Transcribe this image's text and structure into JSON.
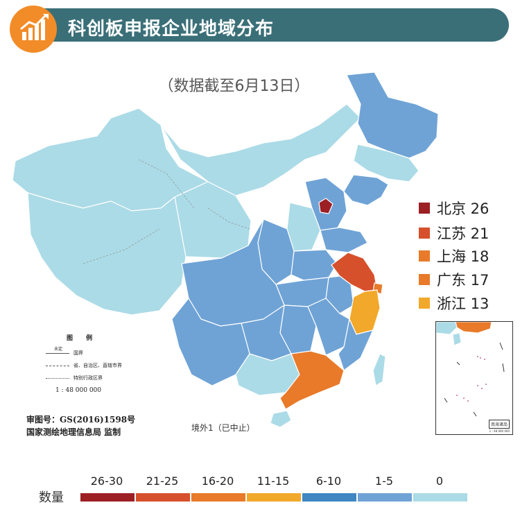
{
  "header": {
    "title": "科创板申报企业地域分布",
    "subtitle": "（数据截至6月13日）"
  },
  "colors": {
    "header_bg": "#3a6f78",
    "logo_bg": "#f28c28",
    "province_0": "#abdbe6",
    "province_1_5": "#6fa3d6",
    "province_6_10": "#3f86c2",
    "province_11_15": "#f2a82a",
    "province_16_20": "#e87a2a",
    "province_21_25": "#d6502b",
    "province_26_30": "#9c1f24",
    "border": "#ffffff",
    "sea": "#ffffff"
  },
  "legend_top": [
    {
      "label": "北京 26",
      "color": "#9c1f24"
    },
    {
      "label": "江苏 21",
      "color": "#d6502b"
    },
    {
      "label": "上海 18",
      "color": "#e87a2a"
    },
    {
      "label": "广东 17",
      "color": "#e87a2a"
    },
    {
      "label": "浙江 13",
      "color": "#f2a82a"
    }
  ],
  "map_legend": {
    "title": "图 例",
    "rows": [
      "国界",
      "省、自治区、直辖市界",
      "特别行政区界"
    ],
    "disputed": "未定",
    "scale": "1 : 48 000 000"
  },
  "approval": "审图号：GS(2016)1598号",
  "surveyor": "国家测绘地理信息局 监制",
  "overseas": "境外1（已中止）",
  "inset": {
    "label": "南海诸岛",
    "scale": "1 : 48 000 000"
  },
  "scale_legend": {
    "title": "数量",
    "ranges": [
      {
        "label": "26-30",
        "color": "#9c1f24"
      },
      {
        "label": "21-25",
        "color": "#d6502b"
      },
      {
        "label": "16-20",
        "color": "#e87a2a"
      },
      {
        "label": "11-15",
        "color": "#f2a82a"
      },
      {
        "label": "6-10",
        "color": "#3f86c2"
      },
      {
        "label": "1-5",
        "color": "#6fa3d6"
      },
      {
        "label": "0",
        "color": "#abdbe6"
      }
    ]
  },
  "icon_names": [
    "bar-chart-icon"
  ]
}
